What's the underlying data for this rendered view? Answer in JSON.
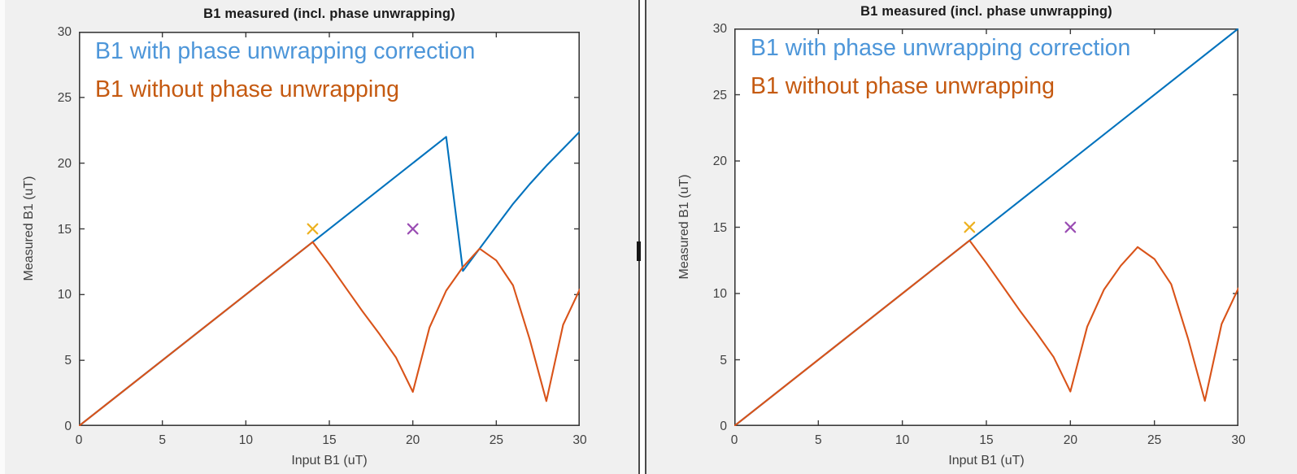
{
  "palette": {
    "line_blue": "#0072BD",
    "line_orange": "#D95319",
    "annotation_blue": "#4D96D9",
    "annotation_orange": "#C55A11",
    "marker_yellow": "#EDB120",
    "marker_purple": "#9A4DB3",
    "axis_color": "#3b3b3b",
    "tick_text_color": "#404040",
    "figure_background": "#f0f0f0"
  },
  "chart_data": [
    {
      "type": "line",
      "title": "B1 measured (incl. phase unwrapping)",
      "xlabel": "Input B1 (uT)",
      "ylabel": "Measured B1 (uT)",
      "xlim": [
        0,
        30
      ],
      "ylim": [
        0,
        30
      ],
      "xticks": [
        0,
        5,
        10,
        15,
        20,
        25,
        30
      ],
      "yticks": [
        0,
        5,
        10,
        15,
        20,
        25,
        30
      ],
      "grid": false,
      "legend_position": "top-left-text-annotations",
      "annotations": [
        {
          "text": "B1 with phase unwrapping correction",
          "color": "#4D96D9"
        },
        {
          "text": "B1 without phase unwrapping",
          "color": "#C55A11"
        }
      ],
      "series": [
        {
          "name": "B1 with phase unwrapping correction",
          "color": "#0072BD",
          "points": [
            [
              0,
              0
            ],
            [
              14,
              14
            ],
            [
              22,
              22
            ],
            [
              23,
              11.8
            ],
            [
              24,
              13.5
            ],
            [
              25,
              15.2
            ],
            [
              26,
              16.9
            ],
            [
              27,
              18.4
            ],
            [
              28,
              19.8
            ],
            [
              29,
              21.1
            ],
            [
              30,
              22.4
            ]
          ]
        },
        {
          "name": "B1 without phase unwrapping",
          "color": "#D95319",
          "points": [
            [
              0,
              0
            ],
            [
              5,
              5
            ],
            [
              10,
              10
            ],
            [
              14,
              14
            ],
            [
              15,
              12.3
            ],
            [
              16,
              10.5
            ],
            [
              17,
              8.7
            ],
            [
              18,
              7.0
            ],
            [
              19,
              5.2
            ],
            [
              20,
              2.6
            ],
            [
              21,
              7.5
            ],
            [
              22,
              10.3
            ],
            [
              23,
              12.1
            ],
            [
              24,
              13.5
            ],
            [
              25,
              12.6
            ],
            [
              26,
              10.7
            ],
            [
              27,
              6.6
            ],
            [
              28,
              1.9
            ],
            [
              29,
              7.7
            ],
            [
              30,
              10.4
            ]
          ]
        }
      ],
      "markers": [
        {
          "name": "yellow-x-marker",
          "x": 14,
          "y": 15,
          "color": "#EDB120"
        },
        {
          "name": "purple-x-marker",
          "x": 20,
          "y": 15,
          "color": "#9A4DB3"
        }
      ]
    },
    {
      "type": "line",
      "title": "B1 measured (incl. phase unwrapping)",
      "xlabel": "Input B1 (uT)",
      "ylabel": "Measured B1 (uT)",
      "xlim": [
        0,
        30
      ],
      "ylim": [
        0,
        30
      ],
      "xticks": [
        0,
        5,
        10,
        15,
        20,
        25,
        30
      ],
      "yticks": [
        0,
        5,
        10,
        15,
        20,
        25,
        30
      ],
      "grid": false,
      "legend_position": "top-left-text-annotations",
      "annotations": [
        {
          "text": "B1 with phase unwrapping correction",
          "color": "#4D96D9"
        },
        {
          "text": "B1 without phase unwrapping",
          "color": "#C55A11"
        }
      ],
      "series": [
        {
          "name": "B1 with phase unwrapping correction",
          "color": "#0072BD",
          "points": [
            [
              0,
              0
            ],
            [
              30,
              30
            ]
          ]
        },
        {
          "name": "B1 without phase unwrapping",
          "color": "#D95319",
          "points": [
            [
              0,
              0
            ],
            [
              5,
              5
            ],
            [
              10,
              10
            ],
            [
              14,
              14
            ],
            [
              15,
              12.3
            ],
            [
              16,
              10.5
            ],
            [
              17,
              8.7
            ],
            [
              18,
              7.0
            ],
            [
              19,
              5.2
            ],
            [
              20,
              2.6
            ],
            [
              21,
              7.5
            ],
            [
              22,
              10.3
            ],
            [
              23,
              12.1
            ],
            [
              24,
              13.5
            ],
            [
              25,
              12.6
            ],
            [
              26,
              10.7
            ],
            [
              27,
              6.6
            ],
            [
              28,
              1.9
            ],
            [
              29,
              7.7
            ],
            [
              30,
              10.4
            ]
          ]
        }
      ],
      "markers": [
        {
          "name": "yellow-x-marker",
          "x": 14,
          "y": 15,
          "color": "#EDB120"
        },
        {
          "name": "purple-x-marker",
          "x": 20,
          "y": 15,
          "color": "#9A4DB3"
        }
      ]
    }
  ]
}
